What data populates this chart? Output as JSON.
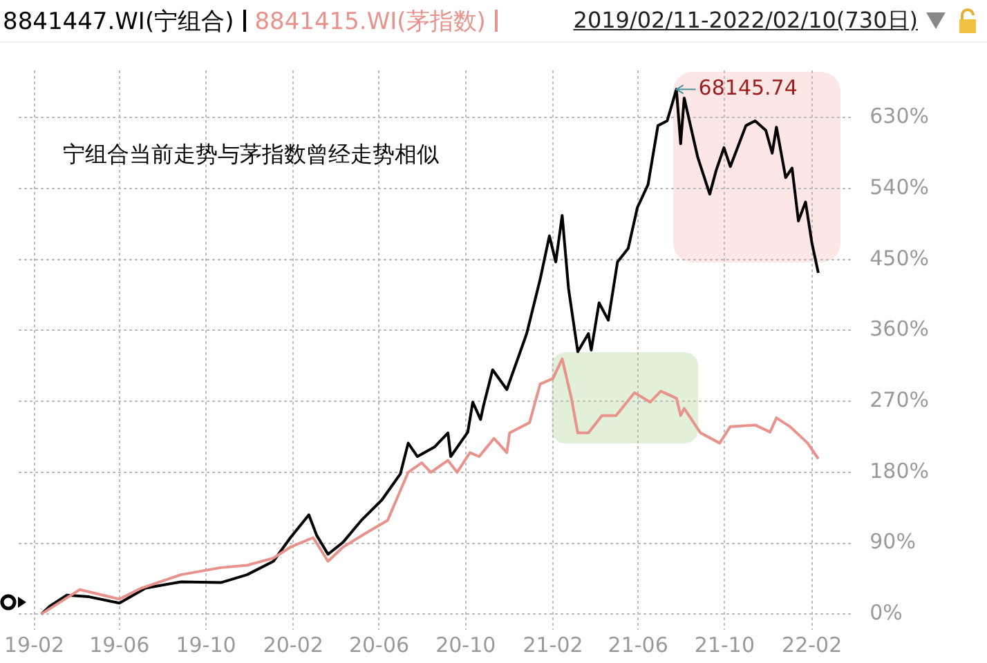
{
  "chart_data": {
    "type": "line",
    "subtitle": "2019/02/11-2022/02/10(730日)",
    "annotations": [
      "宁组合当前走势与茅指数曾经走势相似",
      {
        "text": "68145.74",
        "x": "2021-07-25",
        "y": 666
      }
    ],
    "legend": "top left",
    "grid": true,
    "line_style": "solid",
    "marker": "none",
    "xlim": [
      "2019-01-10",
      "2022-03-31"
    ],
    "xticks": [
      {
        "value": "2019-02-01",
        "label": "19-02"
      },
      {
        "value": "2019-06-01",
        "label": "19-06"
      },
      {
        "value": "2019-10-01",
        "label": "19-10"
      },
      {
        "value": "2020-02-01",
        "label": "20-02"
      },
      {
        "value": "2020-06-01",
        "label": "20-06"
      },
      {
        "value": "2020-10-01",
        "label": "20-10"
      },
      {
        "value": "2021-02-01",
        "label": "21-02"
      },
      {
        "value": "2021-06-01",
        "label": "21-06"
      },
      {
        "value": "2021-10-01",
        "label": "21-10"
      },
      {
        "value": "2022-02-01",
        "label": "22-02"
      }
    ],
    "ylim": [
      -20,
      690
    ],
    "yticks": [
      {
        "value": 0,
        "label": "0%"
      },
      {
        "value": 90,
        "label": "90%"
      },
      {
        "value": 180,
        "label": "180%"
      },
      {
        "value": 270,
        "label": "270%"
      },
      {
        "value": 360,
        "label": "360%"
      },
      {
        "value": 450,
        "label": "450%"
      },
      {
        "value": 540,
        "label": "540%"
      },
      {
        "value": 630,
        "label": "630%"
      }
    ],
    "series": [
      {
        "name": "8841415.WI(茅指数)",
        "color": "#e8928c",
        "x": [
          "2019-02-11",
          "2019-04-06",
          "2019-06-01",
          "2019-07-02",
          "2019-08-27",
          "2019-10-22",
          "2019-11-28",
          "2020-01-04",
          "2020-01-28",
          "2020-02-29",
          "2020-03-21",
          "2020-04-11",
          "2020-05-12",
          "2020-06-13",
          "2020-07-12",
          "2020-07-31",
          "2020-08-13",
          "2020-09-06",
          "2020-09-19",
          "2020-10-07",
          "2020-10-20",
          "2020-11-10",
          "2020-11-28",
          "2020-12-02",
          "2020-12-30",
          "2021-01-14",
          "2021-02-01",
          "2021-02-14",
          "2021-02-27",
          "2021-03-08",
          "2021-03-23",
          "2021-04-11",
          "2021-05-01",
          "2021-05-27",
          "2021-06-18",
          "2021-07-03",
          "2021-07-25",
          "2021-07-31",
          "2021-08-05",
          "2021-08-28",
          "2021-09-24",
          "2021-10-09",
          "2021-11-13",
          "2021-12-04",
          "2021-12-13",
          "2022-01-01",
          "2022-01-26",
          "2022-02-10"
        ],
        "values": [
          0,
          31,
          19,
          33,
          50,
          59,
          62,
          71,
          85,
          97,
          67,
          85,
          102,
          119,
          180,
          192,
          180,
          195,
          180,
          205,
          200,
          223,
          205,
          230,
          243,
          292,
          299,
          324,
          274,
          230,
          230,
          252,
          252,
          281,
          269,
          283,
          274,
          252,
          261,
          230,
          217,
          238,
          240,
          231,
          249,
          238,
          217,
          197
        ]
      },
      {
        "name": "8841447.WI(宁组合)",
        "color": "#000000",
        "x": [
          "2019-02-11",
          "2019-02-23",
          "2019-03-19",
          "2019-04-19",
          "2019-06-01",
          "2019-07-08",
          "2019-08-27",
          "2019-10-22",
          "2019-11-28",
          "2020-01-04",
          "2020-01-28",
          "2020-02-23",
          "2020-03-05",
          "2020-03-21",
          "2020-04-11",
          "2020-05-07",
          "2020-06-05",
          "2020-07-01",
          "2020-07-12",
          "2020-07-25",
          "2020-08-18",
          "2020-09-06",
          "2020-09-10",
          "2020-10-04",
          "2020-10-11",
          "2020-10-22",
          "2020-10-26",
          "2020-11-08",
          "2020-11-28",
          "2020-12-26",
          "2021-01-14",
          "2021-01-27",
          "2021-02-05",
          "2021-02-14",
          "2021-02-23",
          "2021-03-08",
          "2021-03-23",
          "2021-03-27",
          "2021-04-07",
          "2021-04-20",
          "2021-05-03",
          "2021-05-18",
          "2021-05-31",
          "2021-06-15",
          "2021-06-29",
          "2021-07-12",
          "2021-07-25",
          "2021-07-31",
          "2021-08-05",
          "2021-08-24",
          "2021-09-10",
          "2021-09-19",
          "2021-09-30",
          "2021-10-09",
          "2021-10-31",
          "2021-11-13",
          "2021-11-28",
          "2021-12-07",
          "2021-12-13",
          "2021-12-26",
          "2022-01-04",
          "2022-01-13",
          "2022-01-23",
          "2022-02-01",
          "2022-02-10"
        ],
        "values": [
          0,
          10,
          24,
          22,
          14,
          33,
          41,
          40,
          50,
          67,
          97,
          126,
          100,
          76,
          91,
          119,
          145,
          178,
          217,
          200,
          212,
          230,
          200,
          231,
          269,
          247,
          264,
          310,
          285,
          356,
          425,
          480,
          447,
          506,
          413,
          333,
          356,
          335,
          395,
          373,
          447,
          464,
          516,
          545,
          620,
          626,
          666,
          597,
          655,
          580,
          533,
          563,
          592,
          568,
          620,
          626,
          614,
          585,
          618,
          554,
          566,
          499,
          523,
          471,
          433
        ]
      }
    ]
  }
}
